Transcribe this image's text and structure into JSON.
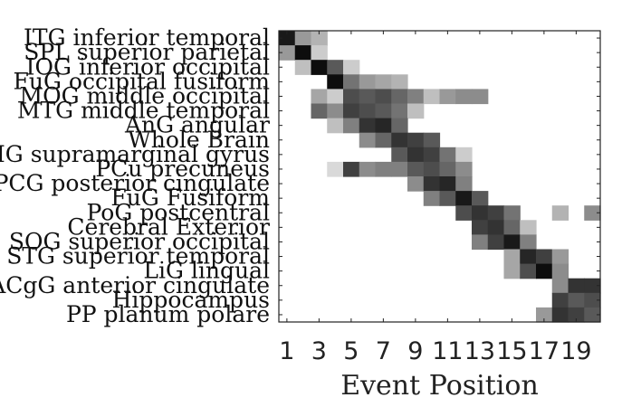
{
  "chart_data": {
    "type": "heatmap",
    "title": "",
    "xlabel": "Event Position",
    "ylabel": "",
    "x_ticks": [
      "1",
      "3",
      "5",
      "7",
      "9",
      "11",
      "13",
      "15",
      "17",
      "19"
    ],
    "n_positions": 20,
    "colormap": "gray_r",
    "value_range": [
      0,
      1
    ],
    "rows": [
      {
        "label": "ITG inferior temporal",
        "values": [
          0.9,
          0.4,
          0.3,
          0,
          0,
          0,
          0,
          0,
          0,
          0,
          0,
          0,
          0,
          0,
          0,
          0,
          0,
          0,
          0,
          0
        ]
      },
      {
        "label": "SPL superior parietal",
        "values": [
          0.4,
          0.95,
          0.2,
          0,
          0,
          0,
          0,
          0,
          0,
          0,
          0,
          0,
          0,
          0,
          0,
          0,
          0,
          0,
          0,
          0
        ]
      },
      {
        "label": "IOG inferior occipital",
        "values": [
          0,
          0.25,
          0.95,
          0.65,
          0.2,
          0,
          0,
          0,
          0,
          0,
          0,
          0,
          0,
          0,
          0,
          0,
          0,
          0,
          0,
          0
        ]
      },
      {
        "label": "FuG occipital fusiform",
        "values": [
          0,
          0,
          0,
          0.95,
          0.55,
          0.4,
          0.35,
          0.3,
          0,
          0,
          0,
          0,
          0,
          0,
          0,
          0,
          0,
          0,
          0,
          0
        ]
      },
      {
        "label": "MOG middle occipital",
        "values": [
          0,
          0,
          0.35,
          0.2,
          0.7,
          0.65,
          0.7,
          0.6,
          0.5,
          0.25,
          0.4,
          0.45,
          0.45,
          0,
          0,
          0,
          0,
          0,
          0,
          0
        ]
      },
      {
        "label": "MTG middle temporal",
        "values": [
          0,
          0,
          0.6,
          0.45,
          0.75,
          0.7,
          0.65,
          0.55,
          0.25,
          0,
          0,
          0,
          0,
          0,
          0,
          0,
          0,
          0,
          0,
          0
        ]
      },
      {
        "label": "AnG angular",
        "values": [
          0,
          0,
          0,
          0.25,
          0.5,
          0.8,
          0.85,
          0.6,
          0,
          0,
          0,
          0,
          0,
          0,
          0,
          0,
          0,
          0,
          0,
          0
        ]
      },
      {
        "label": "Whole Brain",
        "values": [
          0,
          0,
          0,
          0,
          0,
          0.45,
          0.6,
          0.8,
          0.75,
          0.65,
          0,
          0,
          0,
          0,
          0,
          0,
          0,
          0,
          0,
          0
        ]
      },
      {
        "label": "SMG supramarginal gyrus",
        "values": [
          0,
          0,
          0,
          0,
          0,
          0,
          0,
          0.65,
          0.8,
          0.75,
          0.55,
          0.2,
          0,
          0,
          0,
          0,
          0,
          0,
          0,
          0
        ]
      },
      {
        "label": "PCu precuneus",
        "values": [
          0,
          0,
          0,
          0.15,
          0.75,
          0.45,
          0.5,
          0.5,
          0.65,
          0.7,
          0.6,
          0.45,
          0,
          0,
          0,
          0,
          0,
          0,
          0,
          0
        ]
      },
      {
        "label": "PCG posterior cingulate",
        "values": [
          0,
          0,
          0,
          0,
          0,
          0,
          0,
          0,
          0.45,
          0.8,
          0.85,
          0.5,
          0,
          0,
          0,
          0,
          0,
          0,
          0,
          0
        ]
      },
      {
        "label": "FuG Fusiform",
        "values": [
          0,
          0,
          0,
          0,
          0,
          0,
          0,
          0,
          0,
          0.5,
          0.65,
          0.9,
          0.65,
          0,
          0,
          0,
          0,
          0,
          0,
          0
        ]
      },
      {
        "label": "PoG postcentral",
        "values": [
          0,
          0,
          0,
          0,
          0,
          0,
          0,
          0,
          0,
          0,
          0,
          0.7,
          0.8,
          0.75,
          0.55,
          0,
          0,
          0.3,
          0,
          0.45
        ]
      },
      {
        "label": "Cerebral Exterior",
        "values": [
          0,
          0,
          0,
          0,
          0,
          0,
          0,
          0,
          0,
          0,
          0,
          0,
          0.75,
          0.8,
          0.6,
          0.25,
          0,
          0,
          0,
          0
        ]
      },
      {
        "label": "SOG superior occipital",
        "values": [
          0,
          0,
          0,
          0,
          0,
          0,
          0,
          0,
          0,
          0,
          0,
          0,
          0.5,
          0.75,
          0.9,
          0.5,
          0,
          0,
          0,
          0
        ]
      },
      {
        "label": "STG superior temporal",
        "values": [
          0,
          0,
          0,
          0,
          0,
          0,
          0,
          0,
          0,
          0,
          0,
          0,
          0,
          0,
          0.35,
          0.85,
          0.75,
          0.4,
          0,
          0
        ]
      },
      {
        "label": "LiG lingual",
        "values": [
          0,
          0,
          0,
          0,
          0,
          0,
          0,
          0,
          0,
          0,
          0,
          0,
          0,
          0,
          0.35,
          0.7,
          0.95,
          0.45,
          0,
          0
        ]
      },
      {
        "label": "ACgG anterior cingulate",
        "values": [
          0,
          0,
          0,
          0,
          0,
          0,
          0,
          0,
          0,
          0,
          0,
          0,
          0,
          0,
          0,
          0,
          0,
          0.45,
          0.8,
          0.8
        ]
      },
      {
        "label": "Hippocampus",
        "values": [
          0,
          0,
          0,
          0,
          0,
          0,
          0,
          0,
          0,
          0,
          0,
          0,
          0,
          0,
          0,
          0,
          0,
          0.75,
          0.65,
          0.7
        ]
      },
      {
        "label": "PP planum polare",
        "values": [
          0,
          0,
          0,
          0,
          0,
          0,
          0,
          0,
          0,
          0,
          0,
          0,
          0,
          0,
          0,
          0,
          0.4,
          0.8,
          0.75,
          0.65
        ]
      }
    ]
  }
}
